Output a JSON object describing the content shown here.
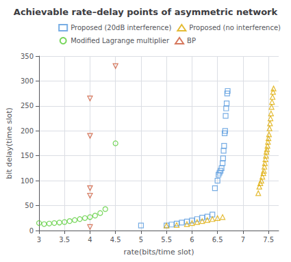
{
  "chart_data": {
    "type": "scatter",
    "title": "Achievable rate–delay points of asymmetric network",
    "x_label": "rate(bits/time slot)",
    "y_label": "bit delay(time slot)",
    "xlim": [
      3,
      7.7
    ],
    "ylim": [
      0,
      350
    ],
    "xticks": [
      3,
      3.5,
      4,
      4.5,
      5,
      5.5,
      6,
      6.5,
      7,
      7.5
    ],
    "yticks": [
      0,
      50,
      100,
      150,
      200,
      250,
      300,
      350
    ],
    "grid": true,
    "legend": "upper right",
    "series": [
      {
        "name": "Proposed (20dB interference)",
        "color": "#5599dd",
        "marker": "square",
        "x": [
          5.0,
          5.5,
          5.6,
          5.7,
          5.8,
          5.9,
          6.0,
          6.1,
          6.2,
          6.3,
          6.4,
          6.45,
          6.5,
          6.52,
          6.54,
          6.56,
          6.58,
          6.6,
          6.61,
          6.62,
          6.63,
          6.64,
          6.65,
          6.66,
          6.67,
          6.68,
          6.69,
          6.7
        ],
        "values": [
          10,
          10,
          12,
          14,
          16,
          18,
          20,
          23,
          26,
          28,
          32,
          85,
          100,
          112,
          116,
          120,
          125,
          135,
          145,
          160,
          170,
          195,
          200,
          230,
          245,
          255,
          275,
          280
        ]
      },
      {
        "name": "Proposed (no interference)",
        "color": "#ddaa00",
        "marker": "triangle",
        "x": [
          5.5,
          5.7,
          5.9,
          6.0,
          6.1,
          6.2,
          6.3,
          6.4,
          6.5,
          6.6,
          7.3,
          7.32,
          7.34,
          7.36,
          7.38,
          7.4,
          7.41,
          7.42,
          7.43,
          7.44,
          7.45,
          7.46,
          7.47,
          7.48,
          7.49,
          7.5,
          7.51,
          7.52,
          7.53,
          7.54,
          7.55,
          7.56,
          7.57,
          7.58,
          7.59,
          7.6
        ],
        "values": [
          10,
          11,
          13,
          15,
          17,
          19,
          21,
          23,
          25,
          27,
          75,
          88,
          95,
          100,
          108,
          115,
          120,
          128,
          135,
          143,
          150,
          158,
          163,
          170,
          178,
          185,
          193,
          205,
          215,
          225,
          235,
          248,
          258,
          268,
          278,
          285
        ]
      },
      {
        "name": "Modified Lagrange multiplier",
        "color": "#55cc33",
        "marker": "circle",
        "x": [
          3.0,
          3.1,
          3.2,
          3.3,
          3.4,
          3.5,
          3.6,
          3.7,
          3.8,
          3.9,
          4.0,
          4.1,
          4.2,
          4.3,
          4.5
        ],
        "values": [
          15,
          13,
          14,
          15,
          16,
          17,
          19,
          21,
          23,
          25,
          27,
          30,
          35,
          43,
          175
        ]
      },
      {
        "name": "BP",
        "color": "#cc5533",
        "marker": "triangle_down",
        "x": [
          4.0,
          4.0,
          4.0,
          4.0,
          4.0,
          4.5
        ],
        "values": [
          7,
          70,
          85,
          190,
          265,
          330
        ]
      }
    ]
  }
}
